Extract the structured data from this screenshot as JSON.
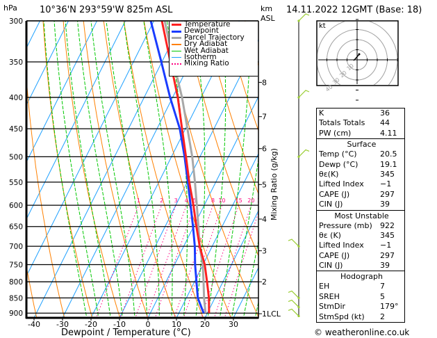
{
  "header": {
    "hpa_label": "hPa",
    "location": "10°36'N  293°59'W  825m  ASL",
    "km_label": "km",
    "asl_label": "ASL",
    "datetime": "14.11.2022  12GMT  (Base: 18)"
  },
  "legend": [
    {
      "label": "Temperature",
      "color": "#ff2020"
    },
    {
      "label": "Dewpoint",
      "color": "#1a3cff"
    },
    {
      "label": "Parcel Trajectory",
      "color": "#a8a8a8"
    },
    {
      "label": "Dry Adiabat",
      "color": "#ff8000"
    },
    {
      "label": "Wet Adiabat",
      "color": "#00c800"
    },
    {
      "label": "Isotherm",
      "color": "#1ea0ff"
    },
    {
      "label": "Mixing Ratio",
      "color": "#ff0080"
    }
  ],
  "chart_data": {
    "type": "line",
    "title": "Skew-T log-P sounding",
    "xlabel": "Dewpoint / Temperature (°C)",
    "ylabel": "hPa",
    "y2label": "Mixing Ratio (g/kg)",
    "x_ticks": [
      -40,
      -30,
      -20,
      -10,
      0,
      10,
      20,
      30
    ],
    "p_ticks": [
      300,
      350,
      400,
      450,
      500,
      550,
      600,
      650,
      700,
      750,
      800,
      850,
      900
    ],
    "km_ticks": [
      {
        "label": "8",
        "p": 378
      },
      {
        "label": "7",
        "p": 430
      },
      {
        "label": "6",
        "p": 485
      },
      {
        "label": "5",
        "p": 555
      },
      {
        "label": "4",
        "p": 632
      },
      {
        "label": "3",
        "p": 712
      },
      {
        "label": "2",
        "p": 800
      },
      {
        "label": "1LCL",
        "p": 902
      }
    ],
    "mixing_ratio_labels": [
      "1",
      "2",
      "3",
      "4",
      "5",
      "8",
      "10",
      "15",
      "20",
      "25"
    ],
    "pressure": [
      900,
      850,
      800,
      750,
      700,
      650,
      600,
      550,
      500,
      450,
      400,
      350,
      300
    ],
    "series": [
      {
        "name": "Temperature",
        "values": [
          20.6,
          17.9,
          14.4,
          10.6,
          5.6,
          1.0,
          -3.8,
          -9.3,
          -14.9,
          -21.2,
          -28.2,
          -37.0,
          -47.2
        ]
      },
      {
        "name": "Dewpoint",
        "values": [
          18.7,
          14.0,
          10.7,
          7.2,
          3.9,
          -0.2,
          -4.8,
          -9.8,
          -15.4,
          -22.0,
          -30.9,
          -40.2,
          -51.1
        ]
      },
      {
        "name": "Parcel Trajectory",
        "values": [
          19.4,
          16.2,
          13.2,
          9.9,
          5.6,
          1.7,
          -2.6,
          -7.3,
          -12.7,
          -19.3,
          -26.7,
          -35.9,
          -46.2
        ]
      }
    ]
  },
  "hodograph": {
    "unit_label": "kt",
    "ring_labels": [
      "10",
      "20",
      "30",
      "40"
    ]
  },
  "indices": {
    "general": [
      {
        "k": "K",
        "v": "36"
      },
      {
        "k": "Totals Totals",
        "v": "44"
      },
      {
        "k": "PW (cm)",
        "v": "4.11"
      }
    ],
    "surface": {
      "title": "Surface",
      "rows": [
        {
          "k": "Temp (°C)",
          "v": "20.5"
        },
        {
          "k": "Dewp (°C)",
          "v": "19.1"
        },
        {
          "k": "θε(K)",
          "v": "345"
        },
        {
          "k": "Lifted Index",
          "v": "−1"
        },
        {
          "k": "CAPE (J)",
          "v": "297"
        },
        {
          "k": "CIN (J)",
          "v": "39"
        }
      ]
    },
    "most_unstable": {
      "title": "Most Unstable",
      "rows": [
        {
          "k": "Pressure (mb)",
          "v": "922"
        },
        {
          "k": "θε (K)",
          "v": "345"
        },
        {
          "k": "Lifted Index",
          "v": "−1"
        },
        {
          "k": "CAPE (J)",
          "v": "297"
        },
        {
          "k": "CIN (J)",
          "v": "39"
        }
      ]
    },
    "hodograph": {
      "title": "Hodograph",
      "rows": [
        {
          "k": "EH",
          "v": "7"
        },
        {
          "k": "SREH",
          "v": "5"
        },
        {
          "k": "StmDir",
          "v": "179°"
        },
        {
          "k": "StmSpd (kt)",
          "v": "2"
        }
      ]
    }
  },
  "copyright": "© weatheronline.co.uk"
}
